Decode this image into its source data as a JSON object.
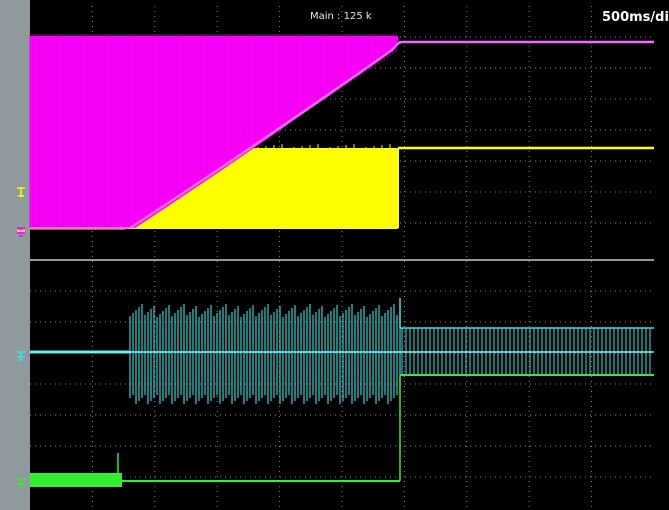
{
  "header": {
    "acquisition_label": "Main : 125 k",
    "timebase_label": "500ms/di"
  },
  "colors": {
    "ch1": "#ff00ff",
    "ch2": "#ffff00",
    "ch3": "#33e6e6",
    "ch4": "#33ee33",
    "grid": "#8a8a8a",
    "divider": "#c8c8c8",
    "screen_bg": "#000000",
    "side_strip": "#8f9a9f"
  },
  "channels": [
    {
      "id": "ch1",
      "color": "#ff00ff",
      "icon": "ground-marker-icon"
    },
    {
      "id": "ch2",
      "color": "#ffff00",
      "icon": "ground-marker-icon"
    },
    {
      "id": "ch3",
      "color": "#33e6e6",
      "icon": "ground-marker-icon"
    },
    {
      "id": "ch4",
      "color": "#33ee33",
      "icon": "ground-marker-icon"
    }
  ]
}
